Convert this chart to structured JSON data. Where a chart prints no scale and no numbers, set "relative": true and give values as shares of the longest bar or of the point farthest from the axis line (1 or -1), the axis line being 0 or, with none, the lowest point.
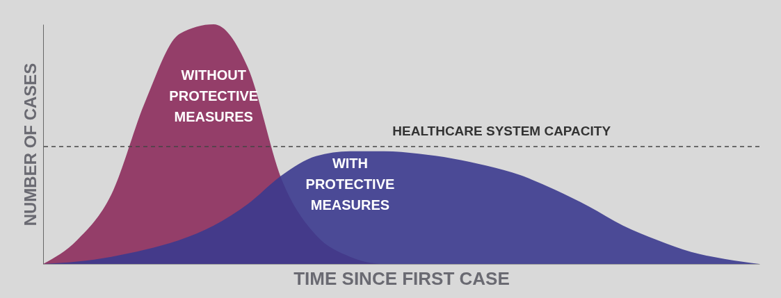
{
  "chart_data": {
    "type": "area",
    "relative": true,
    "xlabel": "TIME SINCE FIRST CASE",
    "ylabel": "NUMBER OF CASES",
    "categories": [
      null,
      null,
      null,
      null,
      null,
      null,
      null,
      null,
      null,
      null,
      null,
      null,
      null,
      null,
      null,
      null,
      null,
      null,
      null,
      null,
      null,
      null
    ],
    "series": [
      {
        "name": "WITHOUT PROTECTIVE MEASURES",
        "color": "#8c2c5c",
        "values": [
          0,
          0.1,
          0.29,
          0.68,
          0.96,
          1,
          0.82,
          0.35,
          0.12,
          0.03,
          0,
          0,
          0,
          0,
          0,
          0,
          0,
          0,
          0,
          0,
          0,
          0
        ]
      },
      {
        "name": "WITH PROTECTIVE MEASURES",
        "color": "#3b3a8e",
        "values": [
          0,
          0.01,
          0.03,
          0.06,
          0.1,
          0.16,
          0.25,
          0.37,
          0.45,
          0.47,
          0.47,
          0.46,
          0.44,
          0.41,
          0.37,
          0.31,
          0.24,
          0.16,
          0.1,
          0.05,
          0.02,
          0
        ]
      }
    ],
    "ref_lines": [
      {
        "axis": "y",
        "value": 0.49,
        "label": "HEALTHCARE SYSTEM CAPACITY",
        "line_style": "dashed"
      }
    ]
  }
}
